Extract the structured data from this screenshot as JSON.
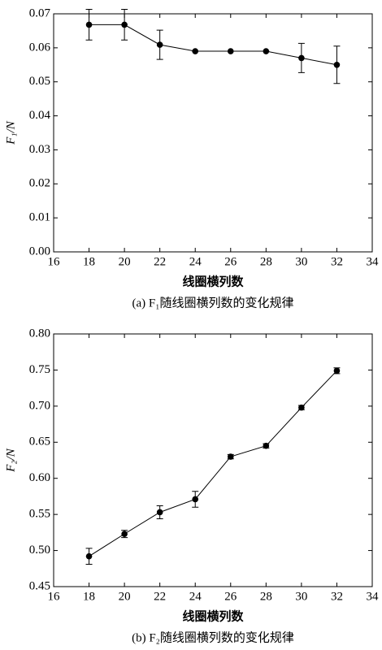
{
  "chart_data": [
    {
      "type": "line",
      "y_label": "F₁/N",
      "x_label": "线圈横列数",
      "caption": "(a) F₁随线圈横列数的变化规律",
      "x": [
        18,
        20,
        22,
        24,
        26,
        28,
        30,
        32
      ],
      "values": [
        0.0668,
        0.0668,
        0.0609,
        0.059,
        0.059,
        0.059,
        0.057,
        0.055
      ],
      "errors": [
        0.0045,
        0.0045,
        0.0043,
        0,
        0,
        0,
        0.0043,
        0.0055
      ],
      "color": "#000000",
      "xlim": [
        16,
        34
      ],
      "xticks": [
        16,
        18,
        20,
        22,
        24,
        26,
        28,
        30,
        32,
        34
      ],
      "ylim": [
        0,
        0.07
      ],
      "yticks": [
        {
          "value": 0,
          "label": "0.00"
        },
        {
          "value": 0.01,
          "label": "0.01"
        },
        {
          "value": 0.02,
          "label": "0.02"
        },
        {
          "value": 0.03,
          "label": "0.03"
        },
        {
          "value": 0.04,
          "label": "0.04"
        },
        {
          "value": 0.05,
          "label": "0.05"
        },
        {
          "value": 0.06,
          "label": "0.06"
        },
        {
          "value": 0.07,
          "label": "0.07"
        }
      ]
    },
    {
      "type": "line",
      "y_label": "F₂/N",
      "x_label": "线圈横列数",
      "caption": "(b) F₂随线圈横列数的变化规律",
      "x": [
        18,
        20,
        22,
        24,
        26,
        28,
        30,
        32
      ],
      "values": [
        0.492,
        0.523,
        0.553,
        0.571,
        0.63,
        0.645,
        0.698,
        0.749
      ],
      "errors": [
        0.011,
        0.005,
        0.009,
        0.011,
        0.003,
        0.003,
        0.003,
        0.004
      ],
      "color": "#000000",
      "xlim": [
        16,
        34
      ],
      "xticks": [
        16,
        18,
        20,
        22,
        24,
        26,
        28,
        30,
        32,
        34
      ],
      "ylim": [
        0.45,
        0.8
      ],
      "yticks": [
        {
          "value": 0.45,
          "label": "0.45"
        },
        {
          "value": 0.5,
          "label": "0.50"
        },
        {
          "value": 0.55,
          "label": "0.55"
        },
        {
          "value": 0.6,
          "label": "0.60"
        },
        {
          "value": 0.65,
          "label": "0.65"
        },
        {
          "value": 0.7,
          "label": "0.70"
        },
        {
          "value": 0.75,
          "label": "0.75"
        },
        {
          "value": 0.8,
          "label": "0.80"
        }
      ]
    }
  ]
}
